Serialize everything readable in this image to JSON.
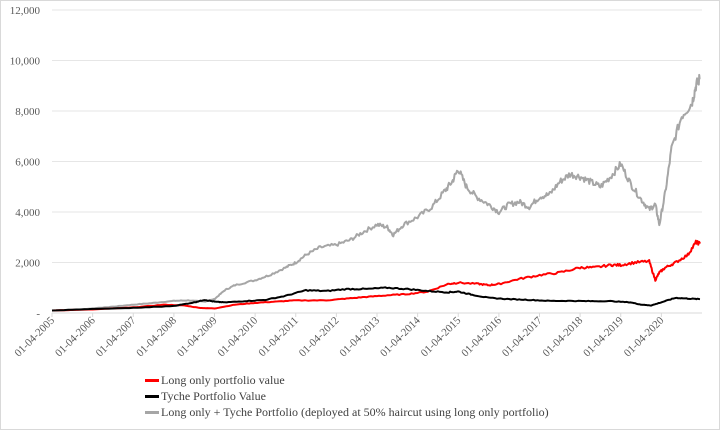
{
  "chart_data": {
    "type": "line",
    "title": "",
    "xlabel": "",
    "ylabel": "",
    "ylim": [
      0,
      12000
    ],
    "xlim": [
      2005.25,
      2021.25
    ],
    "grid": true,
    "legend_position": "bottom",
    "y_ticks": [
      {
        "value": 0,
        "label": "-"
      },
      {
        "value": 2000,
        "label": "2,000"
      },
      {
        "value": 4000,
        "label": "4,000"
      },
      {
        "value": 6000,
        "label": "6,000"
      },
      {
        "value": 8000,
        "label": "8,000"
      },
      {
        "value": 10000,
        "label": "10,000"
      },
      {
        "value": 12000,
        "label": "12,000"
      }
    ],
    "x_ticks": [
      {
        "value": 2005.25,
        "label": "01-04-2005"
      },
      {
        "value": 2006.25,
        "label": "01-04-2006"
      },
      {
        "value": 2007.25,
        "label": "01-04-2007"
      },
      {
        "value": 2008.25,
        "label": "01-04-2008"
      },
      {
        "value": 2009.25,
        "label": "01-04-2009"
      },
      {
        "value": 2010.25,
        "label": "01-04-2010"
      },
      {
        "value": 2011.25,
        "label": "01-04-2011"
      },
      {
        "value": 2012.25,
        "label": "01-04-2012"
      },
      {
        "value": 2013.25,
        "label": "01-04-2013"
      },
      {
        "value": 2014.25,
        "label": "01-04-2014"
      },
      {
        "value": 2015.25,
        "label": "01-04-2015"
      },
      {
        "value": 2016.25,
        "label": "01-04-2016"
      },
      {
        "value": 2017.25,
        "label": "01-04-2017"
      },
      {
        "value": 2018.25,
        "label": "01-04-2018"
      },
      {
        "value": 2019.25,
        "label": "01-04-2019"
      },
      {
        "value": 2020.25,
        "label": "01-04-2020"
      }
    ],
    "series": [
      {
        "name": "Long only + Tyche Portfolio (deployed at 50% haircut using long only portfolio)",
        "color": "#a6a6a6",
        "x": [
          2005.25,
          2005.75,
          2006.25,
          2006.75,
          2007.25,
          2007.75,
          2008.25,
          2008.6,
          2009.0,
          2009.25,
          2009.5,
          2009.75,
          2010.25,
          2010.6,
          2011.0,
          2011.25,
          2011.5,
          2011.85,
          2012.25,
          2012.6,
          2012.9,
          2013.25,
          2013.5,
          2013.65,
          2013.9,
          2014.25,
          2014.6,
          2014.9,
          2015.1,
          2015.25,
          2015.45,
          2015.7,
          2016.0,
          2016.25,
          2016.5,
          2016.75,
          2017.0,
          2017.25,
          2017.5,
          2017.75,
          2018.0,
          2018.25,
          2018.5,
          2018.75,
          2019.0,
          2019.25,
          2019.5,
          2019.75,
          2019.95,
          2020.1,
          2020.2,
          2020.35,
          2020.5,
          2020.75,
          2021.0,
          2021.1,
          2021.2
        ],
        "values": [
          100,
          120,
          180,
          250,
          330,
          400,
          480,
          500,
          450,
          550,
          900,
          1100,
          1300,
          1500,
          1800,
          2000,
          2300,
          2600,
          2700,
          2900,
          3200,
          3500,
          3400,
          3100,
          3500,
          3800,
          4200,
          4800,
          5200,
          5700,
          5000,
          4600,
          4300,
          4000,
          4300,
          4400,
          4200,
          4600,
          4700,
          5200,
          5500,
          5400,
          5200,
          5000,
          5400,
          5900,
          5100,
          4500,
          4100,
          4300,
          3500,
          4800,
          6500,
          7800,
          8300,
          9000,
          9300
        ]
      },
      {
        "name": "Long only portfolio value",
        "color": "#ff0000",
        "x": [
          2005.25,
          2006.25,
          2007.25,
          2008.0,
          2008.5,
          2008.9,
          2009.25,
          2009.75,
          2010.25,
          2010.75,
          2011.25,
          2012.0,
          2012.5,
          2013.0,
          2013.5,
          2014.0,
          2014.5,
          2015.0,
          2015.25,
          2015.75,
          2016.0,
          2016.25,
          2016.75,
          2017.25,
          2017.75,
          2018.25,
          2018.6,
          2019.0,
          2019.25,
          2019.6,
          2019.95,
          2020.1,
          2020.2,
          2020.35,
          2020.6,
          2020.9,
          2021.1,
          2021.2
        ],
        "values": [
          100,
          140,
          220,
          330,
          300,
          200,
          180,
          330,
          400,
          450,
          500,
          500,
          570,
          640,
          700,
          750,
          850,
          1150,
          1200,
          1150,
          1100,
          1150,
          1350,
          1500,
          1600,
          1800,
          1800,
          1900,
          1900,
          2000,
          2050,
          1300,
          1600,
          1800,
          2000,
          2300,
          2800,
          2750
        ]
      },
      {
        "name": "Tyche Portfolio Value",
        "color": "#000000",
        "x": [
          2005.25,
          2006.25,
          2007.25,
          2008.25,
          2008.75,
          2009.0,
          2009.25,
          2009.5,
          2010.0,
          2010.5,
          2011.0,
          2011.5,
          2012.0,
          2012.5,
          2013.0,
          2013.5,
          2014.0,
          2014.5,
          2015.0,
          2015.25,
          2015.6,
          2016.0,
          2016.5,
          2017.0,
          2017.5,
          2018.0,
          2018.5,
          2019.0,
          2019.5,
          2019.75,
          2020.0,
          2020.3,
          2020.6,
          2020.9,
          2021.2
        ],
        "values": [
          100,
          160,
          200,
          280,
          420,
          520,
          450,
          420,
          470,
          520,
          680,
          900,
          870,
          950,
          950,
          1000,
          950,
          870,
          820,
          850,
          720,
          600,
          550,
          520,
          480,
          480,
          470,
          470,
          420,
          330,
          300,
          450,
          600,
          570,
          550
        ]
      }
    ]
  }
}
